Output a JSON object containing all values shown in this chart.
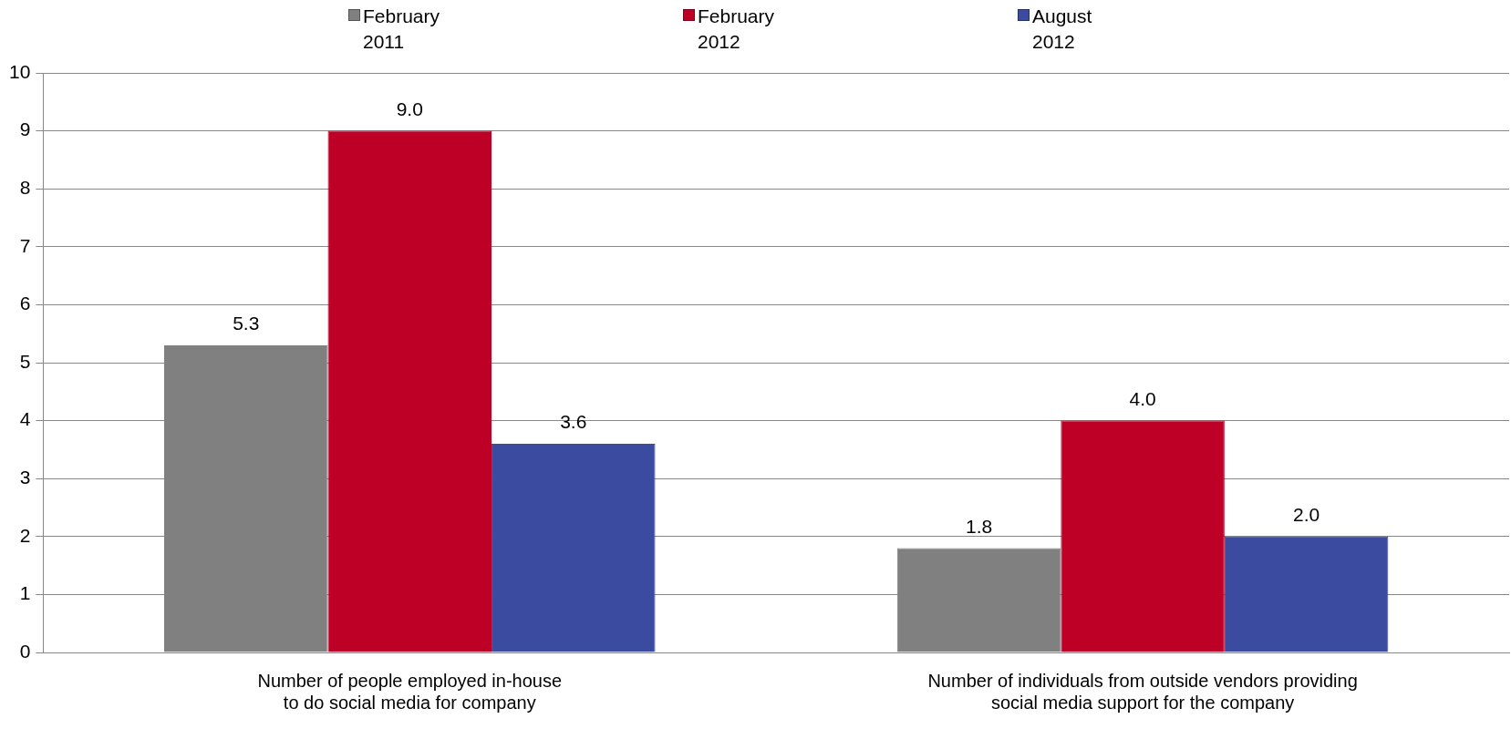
{
  "chart_data": {
    "type": "bar",
    "categories": [
      "Number of people employed in-house\nto do social media for company",
      "Number of individuals from outside vendors providing\nsocial media support for the company"
    ],
    "series": [
      {
        "name": "February\n2011",
        "color": "#808080",
        "values": [
          5.3,
          1.8
        ],
        "value_labels": [
          "5.3",
          "1.8"
        ]
      },
      {
        "name": "February\n2012",
        "color": "#be0027",
        "values": [
          9.0,
          4.0
        ],
        "value_labels": [
          "9.0",
          "4.0"
        ]
      },
      {
        "name": "August\n2012",
        "color": "#3b4ca0",
        "values": [
          3.6,
          2.0
        ],
        "value_labels": [
          "3.6",
          "2.0"
        ]
      }
    ],
    "ylim": [
      0,
      10
    ],
    "yticks": [
      0,
      1,
      2,
      3,
      4,
      5,
      6,
      7,
      8,
      9,
      10
    ],
    "grid": "y",
    "legend": "top"
  }
}
